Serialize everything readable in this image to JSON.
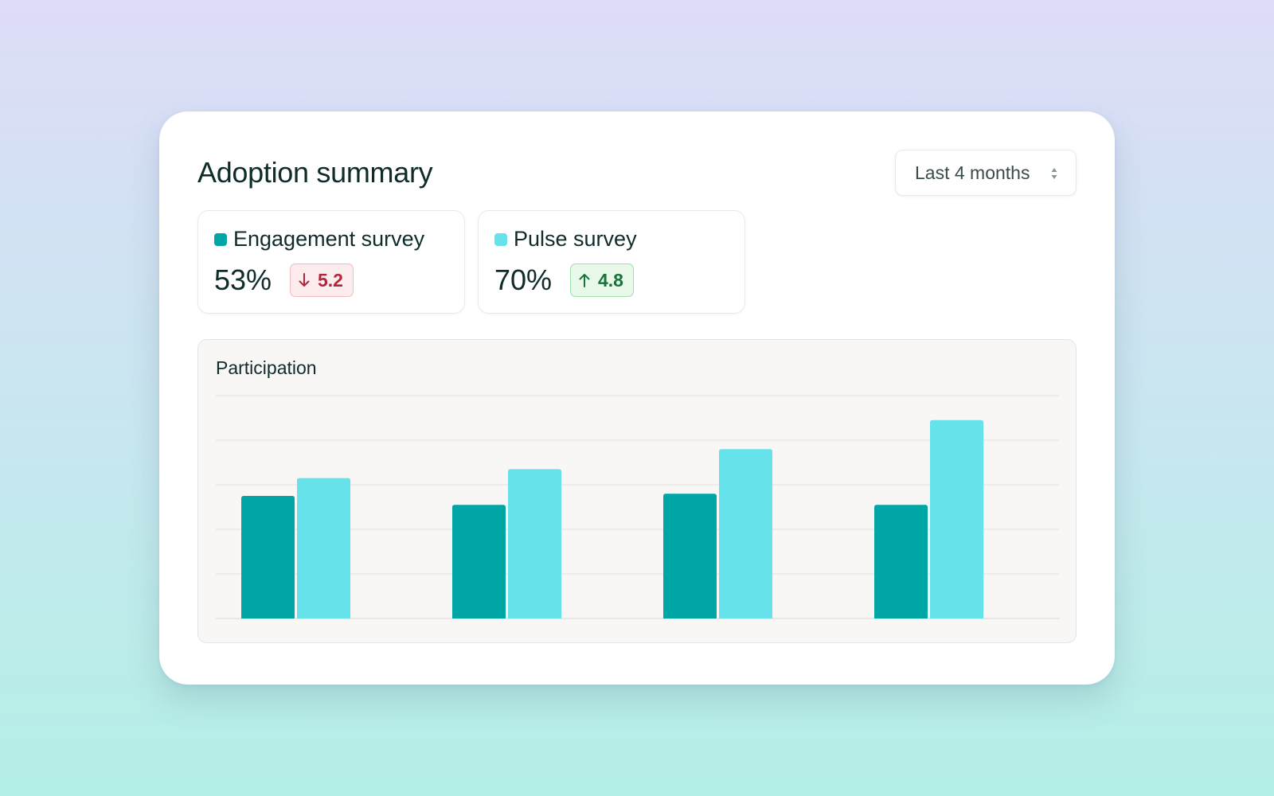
{
  "header": {
    "title": "Adoption summary",
    "range_select": {
      "value": "Last 4 months",
      "icon": "sort-arrows-icon"
    }
  },
  "metrics": [
    {
      "name": "Engagement survey",
      "color": "#00a5a5",
      "value": "53%",
      "delta": "5.2",
      "direction": "down",
      "delta_icon": "arrow-down-icon"
    },
    {
      "name": "Pulse survey",
      "color": "#66e2ea",
      "value": "70%",
      "delta": "4.8",
      "direction": "up",
      "delta_icon": "arrow-up-icon"
    }
  ],
  "chart_data": {
    "type": "bar",
    "title": "Participation",
    "xlabel": "",
    "ylabel": "",
    "ylim": [
      0,
      5
    ],
    "grid": true,
    "categories": [
      "",
      "",
      "",
      ""
    ],
    "series": [
      {
        "name": "Engagement survey",
        "color": "#00a5a5",
        "values": [
          2.75,
          2.55,
          2.8,
          2.55
        ]
      },
      {
        "name": "Pulse survey",
        "color": "#66e2ea",
        "values": [
          3.15,
          3.35,
          3.8,
          4.45
        ]
      }
    ]
  }
}
